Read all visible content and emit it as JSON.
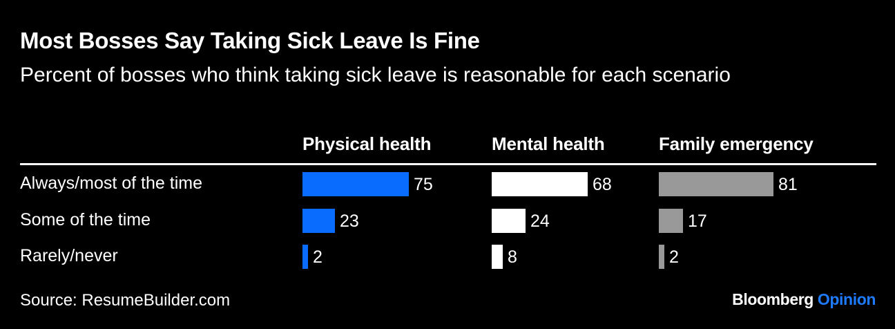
{
  "title": "Most Bosses Say Taking Sick Leave Is Fine",
  "subtitle": "Percent of bosses who think taking sick leave is reasonable for each scenario",
  "source": "Source: ResumeBuilder.com",
  "brand": {
    "name": "Bloomberg",
    "section": "Opinion"
  },
  "chart_data": {
    "type": "bar",
    "orientation": "horizontal",
    "layout": "small-multiples",
    "categories": [
      "Always/most of the time",
      "Some of the time",
      "Rarely/never"
    ],
    "series": [
      {
        "name": "Physical health",
        "values": [
          75,
          23,
          2
        ],
        "color": "#0a6cff"
      },
      {
        "name": "Mental health",
        "values": [
          68,
          24,
          8
        ],
        "color": "#ffffff"
      },
      {
        "name": "Family emergency",
        "values": [
          81,
          17,
          2
        ],
        "color": "#999999"
      }
    ],
    "xlim": [
      0,
      100
    ],
    "grid": false,
    "legend": "none",
    "data_labels": true
  }
}
